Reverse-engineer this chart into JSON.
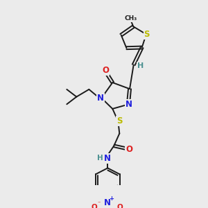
{
  "bg_color": "#ebebeb",
  "bond_color": "#1a1a1a",
  "atom_colors": {
    "N": "#2020dd",
    "O": "#dd2020",
    "S": "#bbbb00",
    "H": "#4a9090",
    "C": "#1a1a1a"
  },
  "fig_w": 3.0,
  "fig_h": 3.0,
  "dpi": 100
}
